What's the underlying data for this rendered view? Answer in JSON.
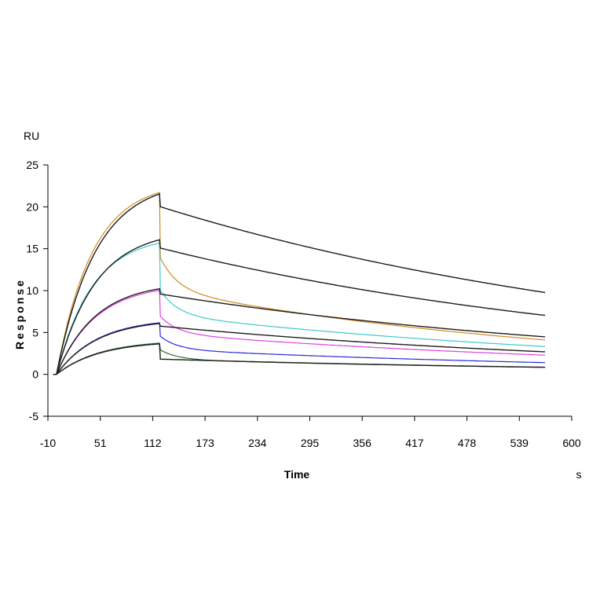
{
  "chart_data": {
    "type": "line",
    "title": "",
    "xlabel": "Time",
    "ylabel": "Response",
    "x_unit": "s",
    "y_unit": "RU",
    "xlim": [
      -10,
      600
    ],
    "ylim": [
      -5,
      25
    ],
    "x_ticks": [
      -10,
      51,
      112,
      173,
      234,
      295,
      356,
      417,
      478,
      539,
      600
    ],
    "y_ticks": [
      -5,
      0,
      5,
      10,
      15,
      20,
      25
    ],
    "grid": false,
    "legend": "none",
    "association_end": 120,
    "series": [
      {
        "color": "#d08c1c",
        "kind": "measured",
        "plateau": 23.0,
        "kon": 0.024,
        "drop": 0.35,
        "fast_frac": 0.28,
        "fast_rate": 0.05,
        "slow_rate": 0.00202
      },
      {
        "color": "#1c1c1c",
        "kind": "fit",
        "plateau": 23.2,
        "kon": 0.022,
        "drop": 0.07,
        "fast_frac": 0.0,
        "fast_rate": 0.05,
        "slow_rate": 0.0016
      },
      {
        "color": "#3cc8cc",
        "kind": "measured",
        "plateau": 16.6,
        "kon": 0.024,
        "drop": 0.35,
        "fast_frac": 0.3,
        "fast_rate": 0.05,
        "slow_rate": 0.0017
      },
      {
        "color": "#1c1c1c",
        "kind": "fit",
        "plateau": 17.3,
        "kon": 0.022,
        "drop": 0.06,
        "fast_frac": 0.0,
        "fast_rate": 0.05,
        "slow_rate": 0.0017
      },
      {
        "color": "#e040e0",
        "kind": "measured",
        "plateau": 10.8,
        "kon": 0.022,
        "drop": 0.3,
        "fast_frac": 0.3,
        "fast_rate": 0.05,
        "slow_rate": 0.0017
      },
      {
        "color": "#1c1c1c",
        "kind": "fit",
        "plateau": 11.0,
        "kon": 0.022,
        "drop": 0.06,
        "fast_frac": 0.0,
        "fast_rate": 0.05,
        "slow_rate": 0.0017
      },
      {
        "color": "#2a2ad8",
        "kind": "measured",
        "plateau": 6.7,
        "kon": 0.021,
        "drop": 0.25,
        "fast_frac": 0.35,
        "fast_rate": 0.05,
        "slow_rate": 0.0017
      },
      {
        "color": "#1c1c1c",
        "kind": "fit",
        "plateau": 6.6,
        "kon": 0.021,
        "drop": 0.05,
        "fast_frac": 0.0,
        "fast_rate": 0.05,
        "slow_rate": 0.0017
      },
      {
        "color": "#2e6e2e",
        "kind": "measured",
        "plateau": 4.1,
        "kon": 0.02,
        "drop": 0.2,
        "fast_frac": 0.4,
        "fast_rate": 0.05,
        "slow_rate": 0.0017
      },
      {
        "color": "#1c1c1c",
        "kind": "fit",
        "plateau": 4.0,
        "kon": 0.02,
        "drop": 0.5,
        "fast_frac": 0.0,
        "fast_rate": 0.05,
        "slow_rate": 0.0017
      }
    ]
  }
}
